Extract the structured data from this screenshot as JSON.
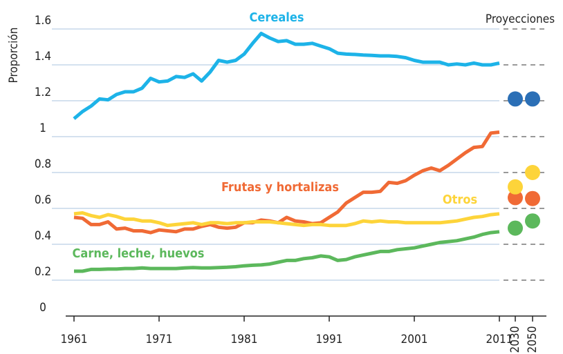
{
  "chart_data": {
    "type": "line",
    "y_label": "Proporción",
    "projection_label": "Proyecciones",
    "projection_categories": [
      "2030",
      "2050"
    ],
    "x": [
      1961,
      1962,
      1963,
      1964,
      1965,
      1966,
      1967,
      1968,
      1969,
      1970,
      1971,
      1972,
      1973,
      1974,
      1975,
      1976,
      1977,
      1978,
      1979,
      1980,
      1981,
      1982,
      1983,
      1984,
      1985,
      1986,
      1987,
      1988,
      1989,
      1990,
      1991,
      1992,
      1993,
      1994,
      1995,
      1996,
      1997,
      1998,
      1999,
      2000,
      2001,
      2002,
      2003,
      2004,
      2005,
      2006,
      2007,
      2008,
      2009,
      2010,
      2011
    ],
    "xlim": [
      1961,
      2011
    ],
    "xticks": [
      1961,
      1971,
      1981,
      1991,
      2001,
      2011
    ],
    "ylim": [
      0,
      1.6
    ],
    "yticks": [
      0,
      0.2,
      0.4,
      0.6,
      0.8,
      1,
      1.2,
      1.4,
      1.6
    ],
    "grid": true,
    "series": [
      {
        "name": "Cereales",
        "color": "#1db3e8",
        "projection_color": "#2b6fb6",
        "values": [
          1.1,
          1.14,
          1.17,
          1.21,
          1.205,
          1.235,
          1.25,
          1.25,
          1.27,
          1.325,
          1.305,
          1.31,
          1.335,
          1.33,
          1.35,
          1.31,
          1.36,
          1.425,
          1.415,
          1.425,
          1.46,
          1.52,
          1.575,
          1.55,
          1.53,
          1.535,
          1.515,
          1.515,
          1.52,
          1.505,
          1.49,
          1.465,
          1.46,
          1.458,
          1.455,
          1.453,
          1.45,
          1.45,
          1.447,
          1.44,
          1.425,
          1.415,
          1.415,
          1.415,
          1.4,
          1.405,
          1.4,
          1.41,
          1.4,
          1.4,
          1.41
        ],
        "projection_values": [
          1.21,
          1.21
        ]
      },
      {
        "name": "Frutas y hortalizas",
        "color": "#f06a35",
        "projection_color": "#f06a35",
        "values": [
          0.55,
          0.545,
          0.51,
          0.51,
          0.525,
          0.485,
          0.49,
          0.475,
          0.475,
          0.465,
          0.48,
          0.475,
          0.47,
          0.485,
          0.485,
          0.5,
          0.51,
          0.495,
          0.49,
          0.495,
          0.52,
          0.52,
          0.535,
          0.53,
          0.52,
          0.55,
          0.53,
          0.525,
          0.515,
          0.52,
          0.55,
          0.58,
          0.63,
          0.66,
          0.69,
          0.69,
          0.695,
          0.745,
          0.74,
          0.755,
          0.785,
          0.81,
          0.825,
          0.81,
          0.84,
          0.875,
          0.91,
          0.94,
          0.945,
          1.02,
          1.025
        ],
        "projection_values": [
          0.66,
          0.655
        ]
      },
      {
        "name": "Otros",
        "color": "#fdd43a",
        "projection_color": "#fdd43a",
        "values": [
          0.57,
          0.575,
          0.56,
          0.55,
          0.565,
          0.555,
          0.54,
          0.54,
          0.53,
          0.53,
          0.52,
          0.505,
          0.51,
          0.515,
          0.52,
          0.51,
          0.52,
          0.52,
          0.515,
          0.52,
          0.52,
          0.525,
          0.525,
          0.525,
          0.52,
          0.515,
          0.51,
          0.505,
          0.51,
          0.51,
          0.505,
          0.505,
          0.505,
          0.515,
          0.53,
          0.525,
          0.53,
          0.525,
          0.525,
          0.52,
          0.52,
          0.52,
          0.52,
          0.52,
          0.525,
          0.53,
          0.54,
          0.55,
          0.555,
          0.565,
          0.57
        ],
        "projection_values": [
          0.72,
          0.8
        ]
      },
      {
        "name": "Carne, leche, huevos",
        "color": "#5cb85c",
        "projection_color": "#5cb85c",
        "values": [
          0.25,
          0.25,
          0.26,
          0.26,
          0.262,
          0.262,
          0.265,
          0.265,
          0.268,
          0.265,
          0.265,
          0.265,
          0.265,
          0.268,
          0.27,
          0.268,
          0.268,
          0.27,
          0.272,
          0.275,
          0.28,
          0.283,
          0.285,
          0.29,
          0.3,
          0.31,
          0.31,
          0.32,
          0.325,
          0.335,
          0.33,
          0.31,
          0.315,
          0.33,
          0.34,
          0.35,
          0.36,
          0.36,
          0.37,
          0.375,
          0.38,
          0.39,
          0.4,
          0.41,
          0.415,
          0.42,
          0.43,
          0.44,
          0.455,
          0.465,
          0.47
        ],
        "projection_values": [
          0.49,
          0.53
        ]
      }
    ]
  }
}
